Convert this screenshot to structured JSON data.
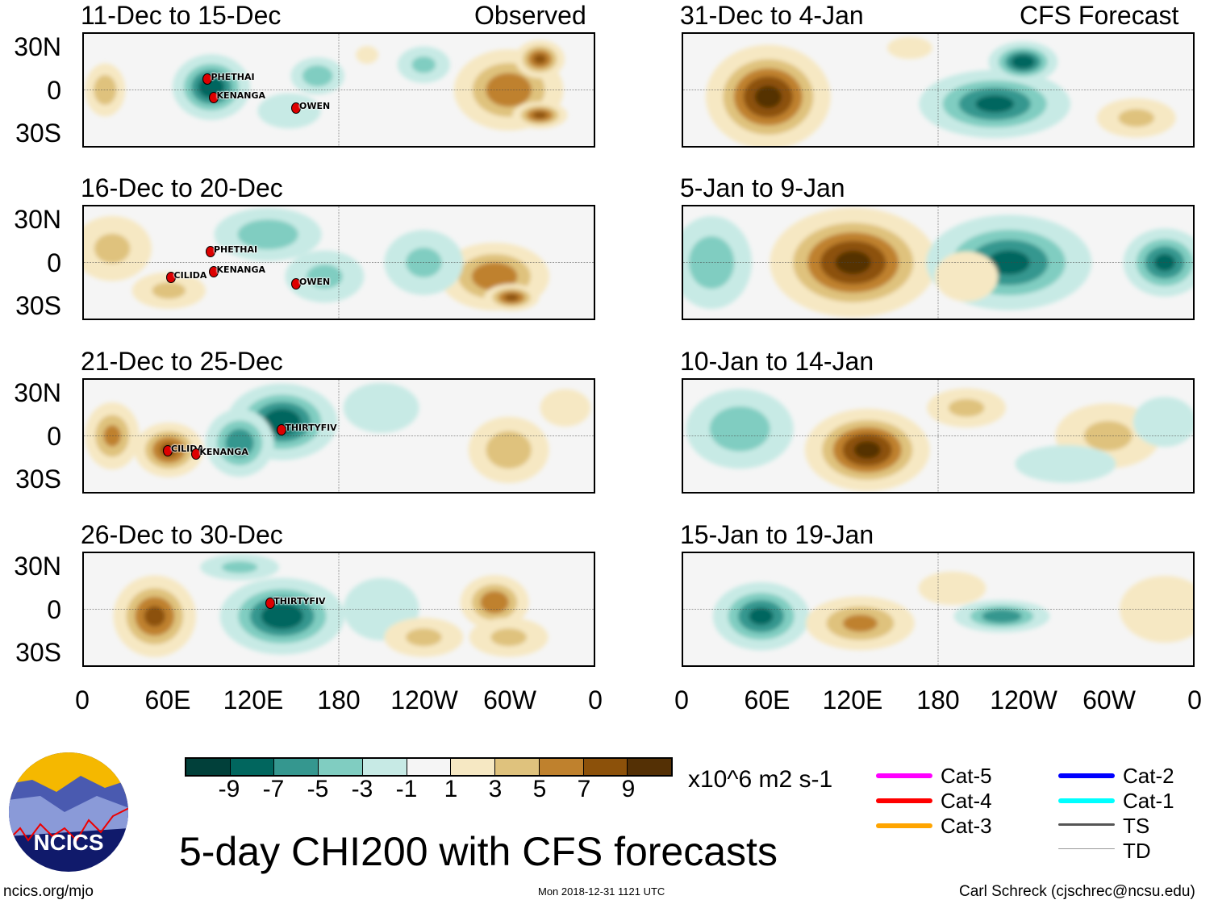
{
  "chart_data": {
    "type": "heatmap",
    "title": "5-day CHI200 with CFS forecasts",
    "units": "x10^6 m2 s-1",
    "column_headers": [
      "Observed",
      "CFS Forecast"
    ],
    "lat_ticks": [
      "30N",
      "0",
      "30S"
    ],
    "lon_ticks": [
      "0",
      "60E",
      "120E",
      "180",
      "120W",
      "60W",
      "0"
    ],
    "xlim": [
      0,
      360
    ],
    "ylim": [
      -40,
      40
    ],
    "colorbar": {
      "ticks": [
        "-9",
        "-7",
        "-5",
        "-3",
        "-1",
        "1",
        "3",
        "5",
        "7",
        "9"
      ],
      "colors": [
        "#01403a",
        "#01665e",
        "#35978f",
        "#80cdc1",
        "#c7eae5",
        "#f5f5f5",
        "#f6e8c3",
        "#dfc27d",
        "#bf812d",
        "#8c510a",
        "#543005"
      ]
    },
    "panels": [
      {
        "title": "11-Dec to 15-Dec",
        "column": "observed",
        "anomaly_centers": [
          [
            90,
            2,
            -9,
            28,
            24
          ],
          [
            165,
            10,
            -5,
            20,
            14
          ],
          [
            145,
            -15,
            -3,
            25,
            14
          ],
          [
            15,
            0,
            5,
            15,
            20
          ],
          [
            300,
            0,
            7,
            40,
            30
          ],
          [
            322,
            22,
            8,
            18,
            14
          ],
          [
            322,
            -18,
            8,
            20,
            10
          ],
          [
            240,
            18,
            -4,
            20,
            14
          ],
          [
            200,
            25,
            2,
            10,
            8
          ]
        ],
        "storms": [
          {
            "name": "PHETHAI",
            "lon": 88,
            "lat": 8
          },
          {
            "name": "KENANGA",
            "lon": 92,
            "lat": -5
          },
          {
            "name": "OWEN",
            "lon": 150,
            "lat": -12
          }
        ]
      },
      {
        "title": "16-Dec to 20-Dec",
        "column": "observed",
        "anomaly_centers": [
          [
            130,
            20,
            -5,
            40,
            20
          ],
          [
            170,
            -10,
            -4,
            30,
            20
          ],
          [
            20,
            10,
            4,
            30,
            25
          ],
          [
            60,
            -20,
            4,
            28,
            14
          ],
          [
            290,
            -10,
            7,
            40,
            25
          ],
          [
            302,
            -25,
            8,
            20,
            10
          ],
          [
            240,
            0,
            -4,
            30,
            25
          ]
        ],
        "storms": [
          {
            "name": "PHETHAI",
            "lon": 90,
            "lat": 8
          },
          {
            "name": "CILIDA",
            "lon": 62,
            "lat": -10
          },
          {
            "name": "KENANGA",
            "lon": 92,
            "lat": -6
          },
          {
            "name": "OWEN",
            "lon": 150,
            "lat": -14
          }
        ]
      },
      {
        "title": "21-Dec to 25-Dec",
        "column": "observed",
        "anomaly_centers": [
          [
            140,
            10,
            -9,
            40,
            28
          ],
          [
            110,
            -5,
            -7,
            25,
            25
          ],
          [
            60,
            -10,
            8,
            25,
            20
          ],
          [
            20,
            0,
            6,
            20,
            25
          ],
          [
            300,
            -10,
            5,
            30,
            25
          ],
          [
            340,
            20,
            3,
            20,
            15
          ],
          [
            210,
            20,
            -3,
            30,
            20
          ]
        ],
        "storms": [
          {
            "name": "THIRTYFIV",
            "lon": 140,
            "lat": 5
          },
          {
            "name": "CILIDA",
            "lon": 60,
            "lat": -10
          },
          {
            "name": "KENANGA",
            "lon": 80,
            "lat": -12
          }
        ]
      },
      {
        "title": "26-Dec to 30-Dec",
        "column": "observed",
        "anomaly_centers": [
          [
            140,
            -5,
            -9,
            45,
            28
          ],
          [
            50,
            -5,
            8,
            30,
            30
          ],
          [
            290,
            5,
            7,
            25,
            20
          ],
          [
            300,
            -20,
            4,
            30,
            15
          ],
          [
            210,
            0,
            -3,
            30,
            25
          ],
          [
            110,
            30,
            -4,
            30,
            10
          ],
          [
            240,
            -20,
            4,
            30,
            15
          ]
        ],
        "storms": [
          {
            "name": "THIRTYFIV",
            "lon": 132,
            "lat": 5
          }
        ]
      },
      {
        "title": "31-Dec to 4-Jan",
        "column": "forecast",
        "anomaly_centers": [
          [
            60,
            -5,
            10,
            45,
            38
          ],
          [
            220,
            -10,
            -8,
            55,
            25
          ],
          [
            240,
            20,
            -9,
            25,
            15
          ],
          [
            160,
            30,
            2,
            20,
            10
          ],
          [
            320,
            -20,
            4,
            30,
            15
          ]
        ],
        "storms": []
      },
      {
        "title": "5-Jan to 9-Jan",
        "column": "forecast",
        "anomaly_centers": [
          [
            120,
            0,
            10,
            60,
            40
          ],
          [
            20,
            0,
            -5,
            30,
            35
          ],
          [
            230,
            0,
            -8,
            60,
            35
          ],
          [
            340,
            0,
            -8,
            30,
            25
          ],
          [
            200,
            -10,
            3,
            25,
            20
          ]
        ],
        "storms": []
      },
      {
        "title": "10-Jan to 14-Jan",
        "column": "forecast",
        "anomaly_centers": [
          [
            130,
            -10,
            10,
            45,
            30
          ],
          [
            40,
            5,
            -5,
            40,
            30
          ],
          [
            200,
            20,
            4,
            30,
            15
          ],
          [
            300,
            0,
            4,
            40,
            25
          ],
          [
            270,
            -20,
            -3,
            40,
            15
          ],
          [
            340,
            10,
            -3,
            25,
            20
          ]
        ],
        "storms": []
      },
      {
        "title": "15-Jan to 19-Jan",
        "column": "forecast",
        "anomaly_centers": [
          [
            55,
            -5,
            -8,
            35,
            25
          ],
          [
            125,
            -10,
            6,
            40,
            20
          ],
          [
            225,
            -5,
            -7,
            35,
            12
          ],
          [
            340,
            0,
            2,
            40,
            30
          ],
          [
            190,
            15,
            2,
            30,
            15
          ]
        ],
        "storms": []
      }
    ]
  },
  "legend": [
    {
      "label": "Cat-5",
      "color": "#ff00ff"
    },
    {
      "label": "Cat-4",
      "color": "#ff0000"
    },
    {
      "label": "Cat-3",
      "color": "#ffa500"
    },
    {
      "label": "Cat-2",
      "color": "#0000ff"
    },
    {
      "label": "Cat-1",
      "color": "#00ffff"
    },
    {
      "label": "TS",
      "color": "#555555"
    },
    {
      "label": "TD",
      "color": "#999999"
    }
  ],
  "logo_text": "NCICS",
  "footer": {
    "left": "ncics.org/mjo",
    "center": "Mon 2018-12-31 1121 UTC",
    "right": "Carl Schreck (cjschrec@ncsu.edu)"
  }
}
